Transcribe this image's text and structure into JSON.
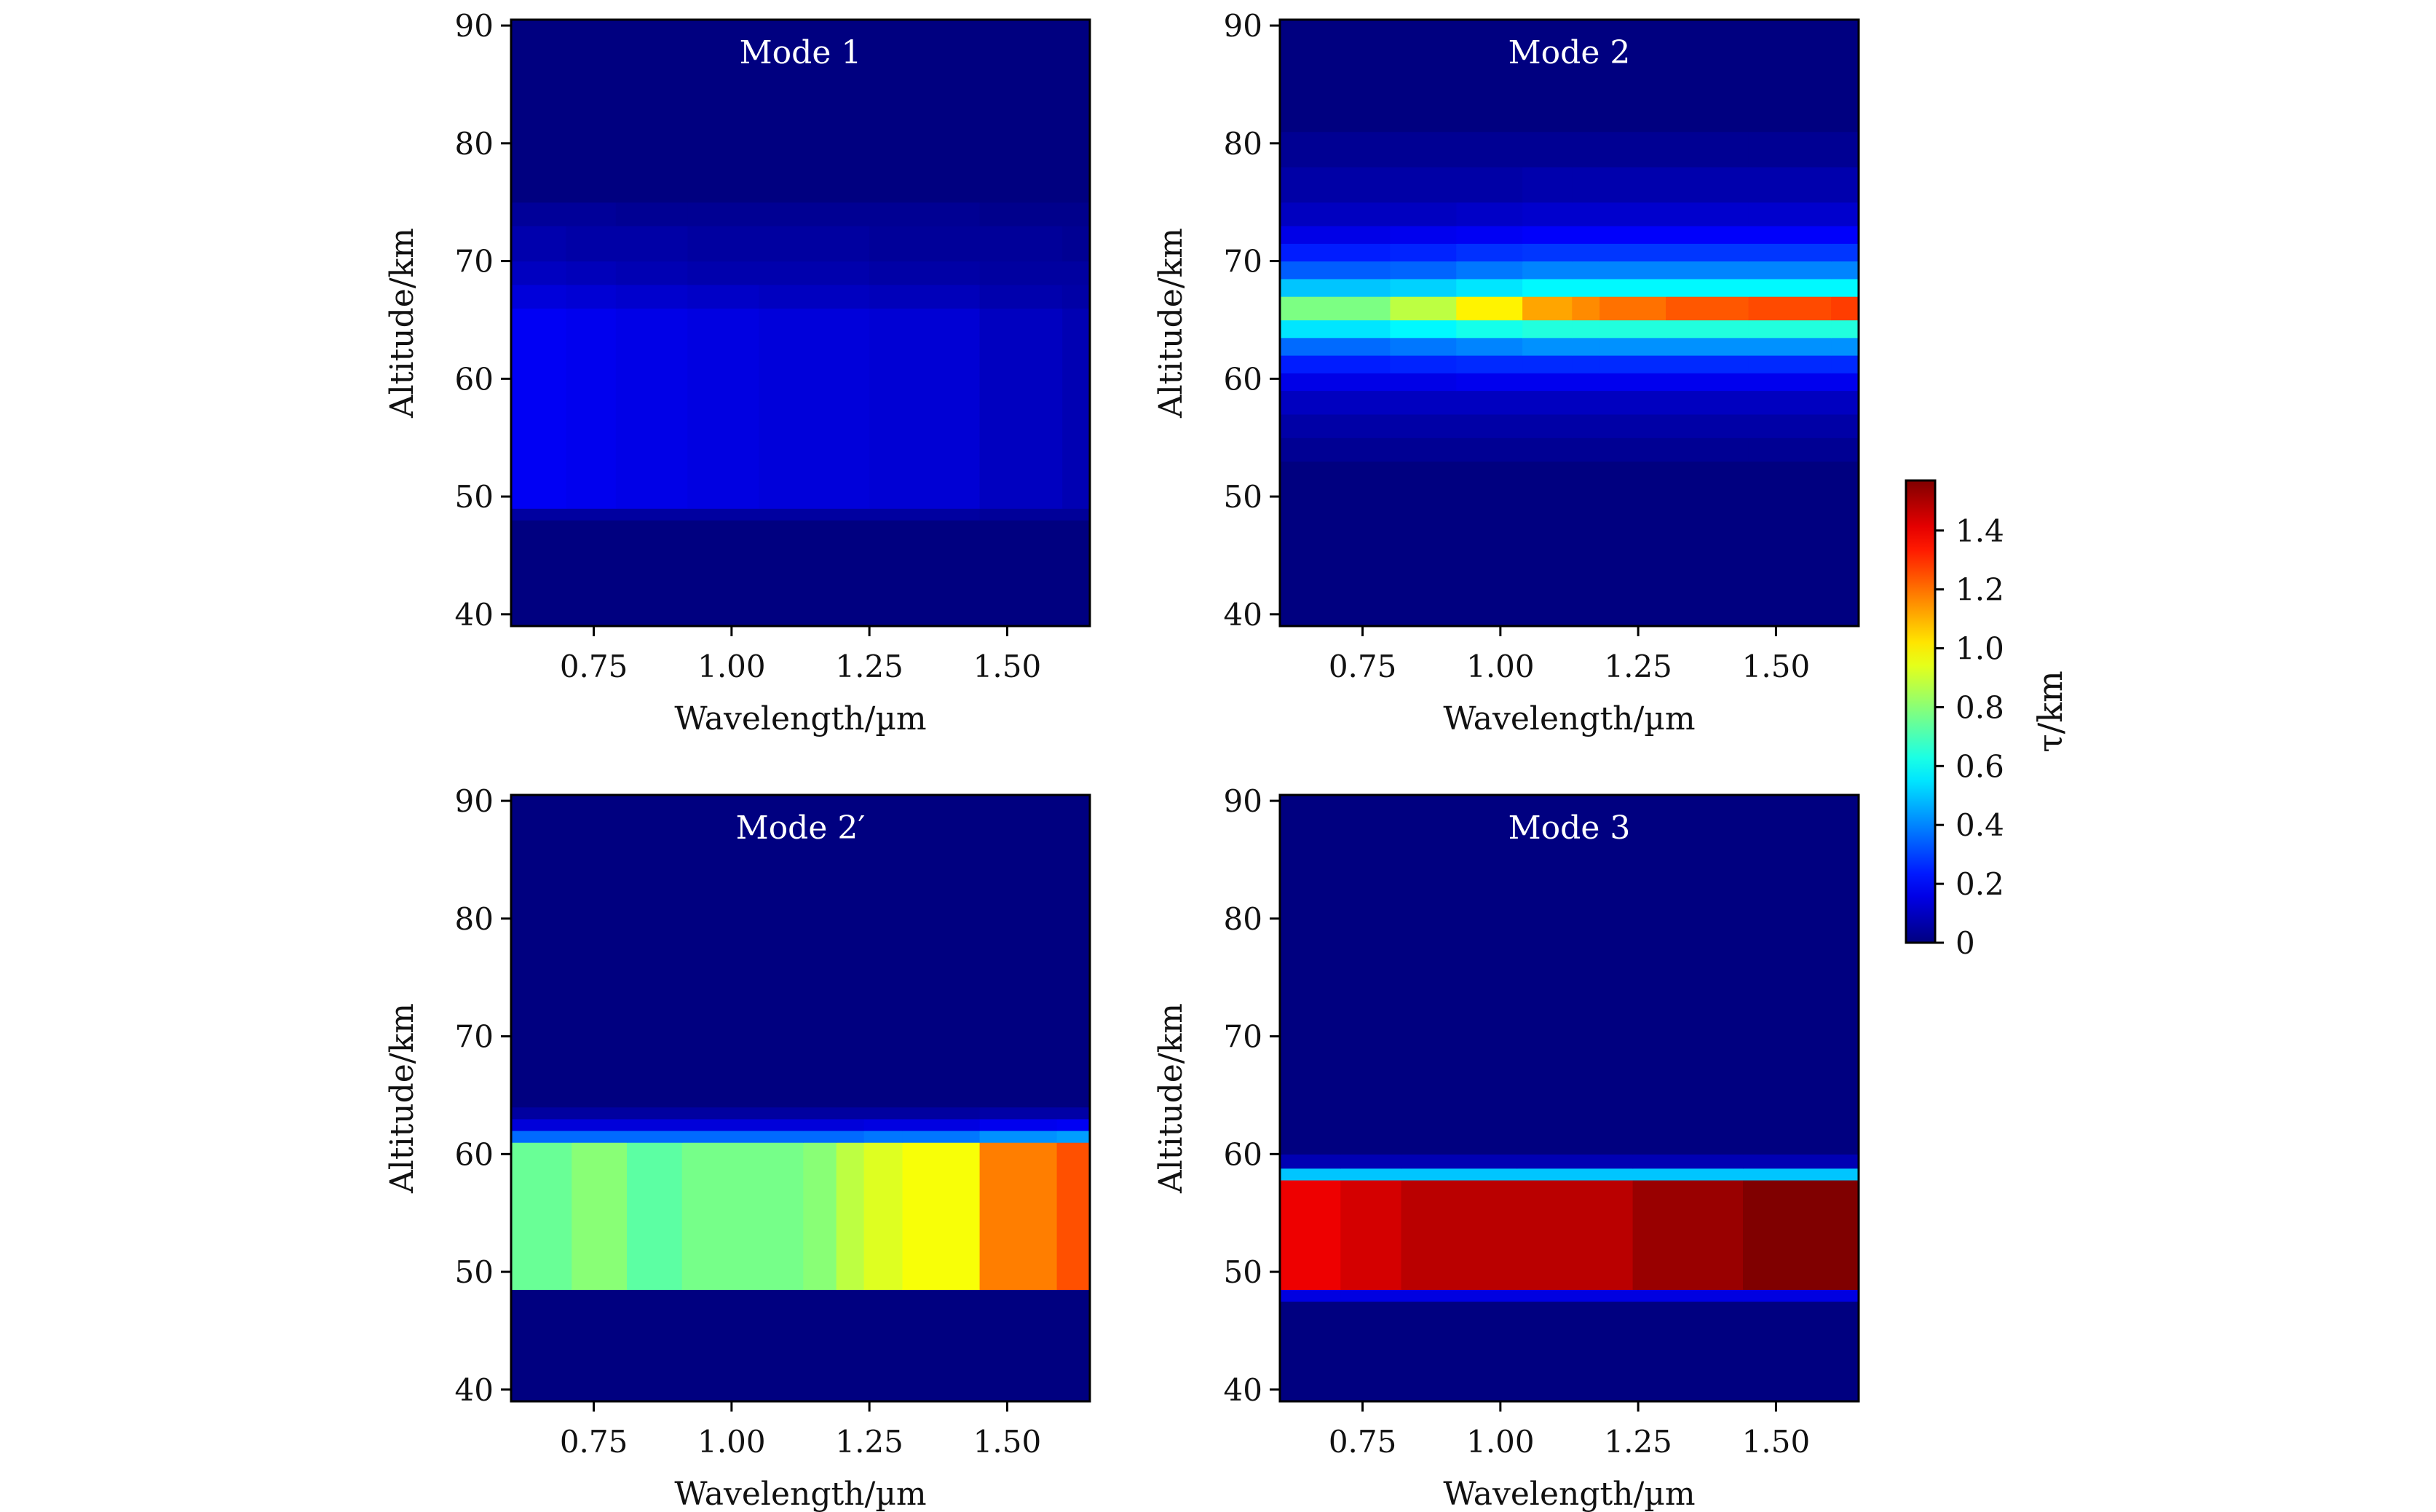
{
  "chart_data": [
    {
      "type": "heatmap",
      "title": "Mode 1",
      "xlabel": "Wavelength/µm",
      "ylabel": "Altitude/km",
      "xlim": [
        0.6,
        1.65
      ],
      "ylim": [
        39,
        90.5
      ],
      "xticks": [
        "0.75",
        "1.00",
        "1.25",
        "1.50"
      ],
      "yticks": [
        "40",
        "50",
        "60",
        "70",
        "80",
        "90"
      ],
      "wavelength_edges": [
        0.6,
        0.7,
        0.79,
        0.92,
        1.05,
        1.25,
        1.45,
        1.6,
        1.65
      ],
      "altitude_bands": [
        {
          "range": [
            39,
            48
          ],
          "values": [
            0,
            0,
            0,
            0,
            0,
            0,
            0,
            0
          ]
        },
        {
          "range": [
            48,
            49
          ],
          "values": [
            0.05,
            0.05,
            0.05,
            0.05,
            0.05,
            0.05,
            0.04,
            0.04
          ]
        },
        {
          "range": [
            49,
            66
          ],
          "values": [
            0.18,
            0.17,
            0.16,
            0.15,
            0.14,
            0.13,
            0.1,
            0.08
          ]
        },
        {
          "range": [
            66,
            68
          ],
          "values": [
            0.14,
            0.13,
            0.12,
            0.11,
            0.1,
            0.09,
            0.07,
            0.06
          ]
        },
        {
          "range": [
            68,
            70
          ],
          "values": [
            0.1,
            0.09,
            0.08,
            0.07,
            0.07,
            0.06,
            0.05,
            0.05
          ]
        },
        {
          "range": [
            70,
            73
          ],
          "values": [
            0.07,
            0.06,
            0.06,
            0.05,
            0.05,
            0.04,
            0.04,
            0.03
          ]
        },
        {
          "range": [
            73,
            75
          ],
          "values": [
            0.04,
            0.04,
            0.03,
            0.03,
            0.03,
            0.03,
            0.02,
            0.02
          ]
        },
        {
          "range": [
            75,
            90.5
          ],
          "values": [
            0,
            0,
            0,
            0,
            0,
            0,
            0,
            0
          ]
        }
      ]
    },
    {
      "type": "heatmap",
      "title": "Mode 2",
      "xlabel": "Wavelength/µm",
      "ylabel": "Altitude/km",
      "xlim": [
        0.6,
        1.65
      ],
      "ylim": [
        39,
        90.5
      ],
      "xticks": [
        "0.75",
        "1.00",
        "1.25",
        "1.50"
      ],
      "yticks": [
        "40",
        "50",
        "60",
        "70",
        "80",
        "90"
      ],
      "wavelength_edges": [
        0.6,
        0.8,
        0.92,
        1.04,
        1.13,
        1.18,
        1.3,
        1.45,
        1.6,
        1.65
      ],
      "altitude_bands": [
        {
          "range": [
            39,
            53
          ],
          "values": [
            0,
            0,
            0,
            0,
            0,
            0,
            0,
            0,
            0
          ]
        },
        {
          "range": [
            53,
            55
          ],
          "values": [
            0.03,
            0.03,
            0.03,
            0.03,
            0.03,
            0.03,
            0.03,
            0.03,
            0.03
          ]
        },
        {
          "range": [
            55,
            57
          ],
          "values": [
            0.06,
            0.06,
            0.06,
            0.06,
            0.06,
            0.06,
            0.06,
            0.06,
            0.06
          ]
        },
        {
          "range": [
            57,
            59
          ],
          "values": [
            0.1,
            0.1,
            0.1,
            0.1,
            0.1,
            0.1,
            0.1,
            0.1,
            0.1
          ]
        },
        {
          "range": [
            59,
            60.5
          ],
          "values": [
            0.16,
            0.16,
            0.17,
            0.17,
            0.17,
            0.17,
            0.17,
            0.17,
            0.17
          ]
        },
        {
          "range": [
            60.5,
            62
          ],
          "values": [
            0.24,
            0.25,
            0.26,
            0.26,
            0.26,
            0.26,
            0.26,
            0.26,
            0.26
          ]
        },
        {
          "range": [
            62,
            63.5
          ],
          "values": [
            0.36,
            0.38,
            0.4,
            0.42,
            0.42,
            0.42,
            0.42,
            0.42,
            0.42
          ]
        },
        {
          "range": [
            63.5,
            65
          ],
          "values": [
            0.55,
            0.58,
            0.62,
            0.64,
            0.64,
            0.64,
            0.64,
            0.64,
            0.64
          ]
        },
        {
          "range": [
            65,
            67
          ],
          "values": [
            0.78,
            0.88,
            1.0,
            1.12,
            1.16,
            1.2,
            1.24,
            1.26,
            1.28
          ]
        },
        {
          "range": [
            67,
            68.5
          ],
          "values": [
            0.5,
            0.52,
            0.55,
            0.58,
            0.58,
            0.58,
            0.58,
            0.58,
            0.58
          ]
        },
        {
          "range": [
            68.5,
            70
          ],
          "values": [
            0.34,
            0.35,
            0.38,
            0.4,
            0.4,
            0.4,
            0.4,
            0.4,
            0.4
          ]
        },
        {
          "range": [
            70,
            71.5
          ],
          "values": [
            0.24,
            0.25,
            0.27,
            0.28,
            0.28,
            0.28,
            0.28,
            0.28,
            0.28
          ]
        },
        {
          "range": [
            71.5,
            73
          ],
          "values": [
            0.16,
            0.17,
            0.18,
            0.19,
            0.19,
            0.19,
            0.19,
            0.19,
            0.19
          ]
        },
        {
          "range": [
            73,
            75
          ],
          "values": [
            0.1,
            0.1,
            0.11,
            0.12,
            0.12,
            0.12,
            0.12,
            0.12,
            0.12
          ]
        },
        {
          "range": [
            75,
            78
          ],
          "values": [
            0.06,
            0.06,
            0.06,
            0.07,
            0.07,
            0.07,
            0.07,
            0.07,
            0.07
          ]
        },
        {
          "range": [
            78,
            81
          ],
          "values": [
            0.03,
            0.03,
            0.03,
            0.03,
            0.03,
            0.03,
            0.03,
            0.03,
            0.03
          ]
        },
        {
          "range": [
            81,
            90.5
          ],
          "values": [
            0,
            0,
            0,
            0,
            0,
            0,
            0,
            0,
            0
          ]
        }
      ]
    },
    {
      "type": "heatmap",
      "title": "Mode 2′",
      "xlabel": "Wavelength/µm",
      "ylabel": "Altitude/km",
      "xlim": [
        0.6,
        1.65
      ],
      "ylim": [
        39,
        90.5
      ],
      "xticks": [
        "0.75",
        "1.00",
        "1.25",
        "1.50"
      ],
      "yticks": [
        "40",
        "50",
        "60",
        "70",
        "80",
        "90"
      ],
      "wavelength_edges": [
        0.6,
        0.71,
        0.81,
        0.91,
        1.13,
        1.19,
        1.24,
        1.31,
        1.45,
        1.59,
        1.65
      ],
      "altitude_bands": [
        {
          "range": [
            39,
            48.5
          ],
          "values": [
            0,
            0,
            0,
            0,
            0,
            0,
            0,
            0,
            0,
            0
          ]
        },
        {
          "range": [
            48.5,
            61
          ],
          "values": [
            0.75,
            0.8,
            0.73,
            0.77,
            0.8,
            0.88,
            0.93,
            0.97,
            1.18,
            1.25
          ]
        },
        {
          "range": [
            61,
            62
          ],
          "values": [
            0.36,
            0.36,
            0.36,
            0.36,
            0.36,
            0.36,
            0.38,
            0.38,
            0.42,
            0.44
          ]
        },
        {
          "range": [
            62,
            63
          ],
          "values": [
            0.14,
            0.14,
            0.14,
            0.14,
            0.14,
            0.14,
            0.15,
            0.15,
            0.17,
            0.18
          ]
        },
        {
          "range": [
            63,
            64
          ],
          "values": [
            0.05,
            0.05,
            0.05,
            0.05,
            0.05,
            0.05,
            0.05,
            0.05,
            0.06,
            0.06
          ]
        },
        {
          "range": [
            64,
            90.5
          ],
          "values": [
            0,
            0,
            0,
            0,
            0,
            0,
            0,
            0,
            0,
            0
          ]
        }
      ]
    },
    {
      "type": "heatmap",
      "title": "Mode 3",
      "xlabel": "Wavelength/µm",
      "ylabel": "Altitude/km",
      "xlim": [
        0.6,
        1.65
      ],
      "ylim": [
        39,
        90.5
      ],
      "xticks": [
        "0.75",
        "1.00",
        "1.25",
        "1.50"
      ],
      "yticks": [
        "40",
        "50",
        "60",
        "70",
        "80",
        "90"
      ],
      "wavelength_edges": [
        0.6,
        0.71,
        0.82,
        1.03,
        1.24,
        1.44,
        1.65
      ],
      "altitude_bands": [
        {
          "range": [
            39,
            47.5
          ],
          "values": [
            0,
            0,
            0,
            0,
            0,
            0
          ]
        },
        {
          "range": [
            47.5,
            48.5
          ],
          "values": [
            0.15,
            0.15,
            0.15,
            0.15,
            0.15,
            0.15
          ]
        },
        {
          "range": [
            48.5,
            57.8
          ],
          "values": [
            1.4,
            1.44,
            1.48,
            1.48,
            1.53,
            1.58
          ]
        },
        {
          "range": [
            57.8,
            58.8
          ],
          "values": [
            0.5,
            0.5,
            0.5,
            0.5,
            0.5,
            0.5
          ]
        },
        {
          "range": [
            58.8,
            60
          ],
          "values": [
            0.08,
            0.08,
            0.08,
            0.08,
            0.08,
            0.08
          ]
        },
        {
          "range": [
            60,
            90.5
          ],
          "values": [
            0,
            0,
            0,
            0,
            0,
            0
          ]
        }
      ]
    }
  ],
  "colorbar": {
    "label": "τ/km",
    "range": [
      0,
      1.57
    ],
    "ticks": [
      "0",
      "0.2",
      "0.4",
      "0.6",
      "0.8",
      "1.0",
      "1.2",
      "1.4"
    ],
    "colormap": "jet"
  }
}
